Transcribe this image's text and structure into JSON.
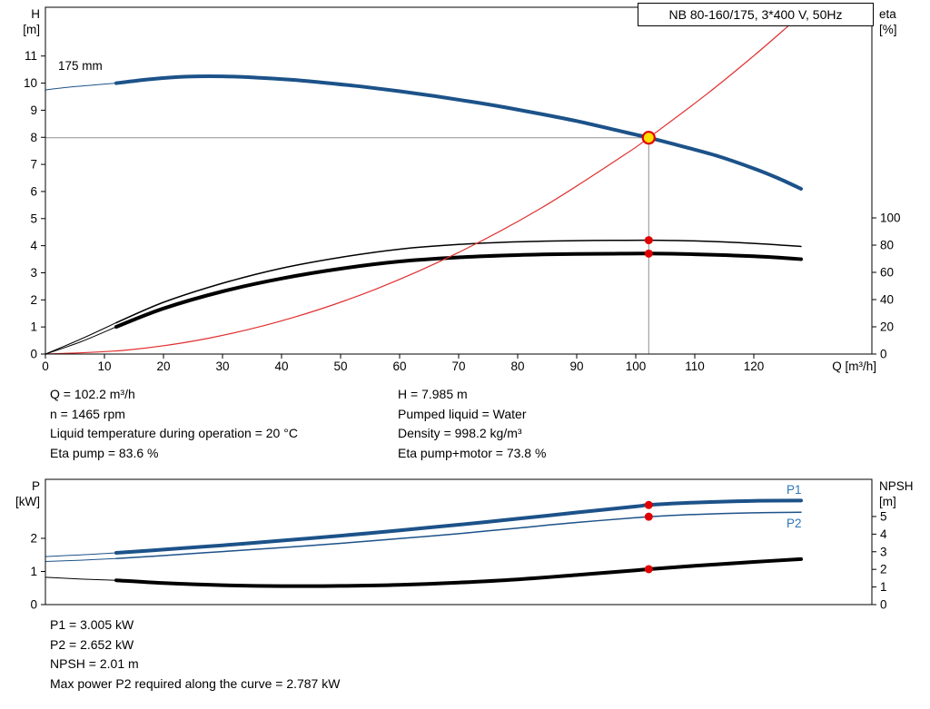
{
  "colors": {
    "blue": "#1c5289",
    "red": "#e03030",
    "black": "#000000",
    "label_blue": "#2e75b6",
    "duty_fill": "#ffdf00",
    "duty_ring": "#e00000",
    "dot_red": "#e00000",
    "guide_gray": "#909090"
  },
  "info_top": {
    "col1": [
      "Q = 102.2 m³/h",
      "n = 1465 rpm",
      "Liquid temperature during operation = 20 °C",
      "Eta pump = 83.6 %"
    ],
    "col2": [
      "H = 7.985 m",
      "Pumped liquid = Water",
      "Density = 998.2 kg/m³",
      "Eta pump+motor = 73.8 %"
    ]
  },
  "info_bottom": [
    "P1 = 3.005 kW",
    "P2 = 2.652 kW",
    "NPSH = 2.01 m",
    "Max power P2 required along the curve = 2.787 kW"
  ],
  "chart_data": [
    {
      "type": "line",
      "title": "NB 80-160/175, 3*400 V, 50Hz",
      "xlabel": "Q [m³/h]",
      "x_range": [
        0,
        140
      ],
      "x_ticks": [
        0,
        10,
        20,
        30,
        40,
        50,
        60,
        70,
        80,
        90,
        100,
        110,
        120
      ],
      "left_axis": {
        "label_lines": [
          "H",
          "[m]"
        ],
        "range": [
          0,
          12.8
        ],
        "ticks": [
          0,
          1,
          2,
          3,
          4,
          5,
          6,
          7,
          8,
          9,
          10,
          11
        ]
      },
      "right_axis": {
        "label_lines": [
          "eta",
          "[%]"
        ],
        "range": [
          0,
          254.7
        ],
        "ticks": [
          0,
          20,
          40,
          60,
          80,
          100
        ]
      },
      "impeller_label": "175 mm",
      "duty_point": {
        "q_m3h": 102.2,
        "h_m": 7.985,
        "eta_pump_pct": 83.6,
        "eta_pump_motor_pct": 73.8
      },
      "guides": {
        "crosshair": {
          "q": 102.2,
          "value": 7.985
        }
      },
      "series": [
        {
          "name": "head-curve-thin",
          "axis": "left",
          "color": "blue",
          "width": 1,
          "points": [
            [
              0,
              9.75
            ],
            [
              4,
              9.85
            ],
            [
              8,
              9.93
            ],
            [
              12,
              10.0
            ]
          ]
        },
        {
          "name": "eta-pump-thin",
          "axis": "right",
          "color": "black",
          "width": 1,
          "points": [
            [
              0,
              0
            ],
            [
              6,
              11
            ],
            [
              12,
              23
            ]
          ]
        },
        {
          "name": "eta-pump-motor-thin",
          "axis": "right",
          "color": "black",
          "width": 1,
          "points": [
            [
              0,
              0
            ],
            [
              6,
              9
            ],
            [
              12,
              20
            ]
          ]
        },
        {
          "name": "eta-pump-curve",
          "axis": "right",
          "color": "black",
          "width": 1.5,
          "points": [
            [
              12,
              23
            ],
            [
              20,
              38
            ],
            [
              30,
              52
            ],
            [
              40,
              63
            ],
            [
              50,
              71
            ],
            [
              60,
              77
            ],
            [
              70,
              80.5
            ],
            [
              80,
              82.4
            ],
            [
              90,
              83.3
            ],
            [
              96,
              83.5
            ],
            [
              102.2,
              83.6
            ],
            [
              110,
              83.1
            ],
            [
              120,
              81.3
            ],
            [
              128,
              79
            ]
          ]
        },
        {
          "name": "eta-pump-motor-curve",
          "axis": "right",
          "color": "black",
          "width": 4,
          "points": [
            [
              12,
              20
            ],
            [
              20,
              33.5
            ],
            [
              30,
              46
            ],
            [
              40,
              55.5
            ],
            [
              50,
              62.7
            ],
            [
              60,
              68
            ],
            [
              70,
              71
            ],
            [
              80,
              72.7
            ],
            [
              90,
              73.5
            ],
            [
              96,
              73.7
            ],
            [
              102.2,
              73.8
            ],
            [
              110,
              73.3
            ],
            [
              120,
              71.8
            ],
            [
              128,
              69.7
            ]
          ]
        },
        {
          "name": "system-curve",
          "axis": "left",
          "color": "red",
          "width": 1.2,
          "points": [
            [
              0,
              0
            ],
            [
              14,
              0.15
            ],
            [
              28,
              0.6
            ],
            [
              42,
              1.35
            ],
            [
              56,
              2.4
            ],
            [
              70,
              3.75
            ],
            [
              84,
              5.39
            ],
            [
              98,
              7.34
            ],
            [
              102.2,
              7.985
            ],
            [
              112,
              9.59
            ],
            [
              120,
              11.01
            ],
            [
              126,
              12.14
            ]
          ]
        },
        {
          "name": "head-curve",
          "axis": "left",
          "color": "blue",
          "width": 4,
          "points": [
            [
              12,
              10.0
            ],
            [
              18,
              10.15
            ],
            [
              24,
              10.24
            ],
            [
              30,
              10.25
            ],
            [
              36,
              10.2
            ],
            [
              42,
              10.12
            ],
            [
              48,
              10.0
            ],
            [
              54,
              9.86
            ],
            [
              60,
              9.7
            ],
            [
              66,
              9.52
            ],
            [
              72,
              9.32
            ],
            [
              78,
              9.1
            ],
            [
              84,
              8.86
            ],
            [
              90,
              8.6
            ],
            [
              96,
              8.3
            ],
            [
              102.2,
              7.985
            ],
            [
              108,
              7.66
            ],
            [
              114,
              7.3
            ],
            [
              120,
              6.85
            ],
            [
              124,
              6.5
            ],
            [
              128,
              6.1
            ]
          ]
        }
      ],
      "markers": [
        {
          "name": "duty-point",
          "q": 102.2,
          "axis": "left",
          "value": 7.985,
          "style": "duty"
        },
        {
          "name": "eta-pump-point",
          "q": 102.2,
          "axis": "right",
          "value": 83.6,
          "style": "dot"
        },
        {
          "name": "eta-pump-motor-point",
          "q": 102.2,
          "axis": "right",
          "value": 73.8,
          "style": "dot"
        }
      ]
    },
    {
      "type": "line",
      "title": "",
      "xlabel": "",
      "x_range": [
        0,
        140
      ],
      "x_ticks": [],
      "left_axis": {
        "label_lines": [
          "P",
          "[kW]"
        ],
        "range": [
          0,
          3.78
        ],
        "ticks": [
          0,
          1,
          2
        ]
      },
      "right_axis": {
        "label_lines": [
          "NPSH",
          "[m]"
        ],
        "range": [
          0,
          7.11
        ],
        "ticks": [
          0,
          1,
          2,
          3,
          4,
          5
        ]
      },
      "duty_point": {
        "q_m3h": 102.2,
        "p1_kw": 3.005,
        "p2_kw": 2.652,
        "npsh_m": 2.01,
        "max_p2_kw": 2.787
      },
      "curve_labels": [
        {
          "text": "P1"
        },
        {
          "text": "P2"
        }
      ],
      "series": [
        {
          "name": "p1-curve-thin",
          "axis": "left",
          "color": "blue",
          "width": 1,
          "points": [
            [
              0,
              1.45
            ],
            [
              6,
              1.5
            ],
            [
              12,
              1.56
            ]
          ]
        },
        {
          "name": "p2-curve-thin",
          "axis": "left",
          "color": "blue",
          "width": 1,
          "points": [
            [
              0,
              1.3
            ],
            [
              6,
              1.34
            ],
            [
              12,
              1.39
            ]
          ]
        },
        {
          "name": "npsh-curve-thin",
          "axis": "right",
          "color": "black",
          "width": 1,
          "points": [
            [
              0,
              1.55
            ],
            [
              6,
              1.45
            ],
            [
              12,
              1.38
            ]
          ]
        },
        {
          "name": "p1-curve",
          "axis": "left",
          "color": "blue",
          "width": 4,
          "points": [
            [
              12,
              1.56
            ],
            [
              20,
              1.66
            ],
            [
              30,
              1.79
            ],
            [
              40,
              1.93
            ],
            [
              50,
              2.08
            ],
            [
              60,
              2.24
            ],
            [
              70,
              2.41
            ],
            [
              80,
              2.59
            ],
            [
              90,
              2.78
            ],
            [
              100,
              2.96
            ],
            [
              102.2,
              3.005
            ],
            [
              110,
              3.08
            ],
            [
              120,
              3.13
            ],
            [
              128,
              3.14
            ]
          ]
        },
        {
          "name": "p2-curve",
          "axis": "left",
          "color": "blue",
          "width": 1.5,
          "points": [
            [
              12,
              1.39
            ],
            [
              20,
              1.48
            ],
            [
              30,
              1.6
            ],
            [
              40,
              1.72
            ],
            [
              50,
              1.85
            ],
            [
              60,
              1.99
            ],
            [
              70,
              2.14
            ],
            [
              80,
              2.31
            ],
            [
              90,
              2.48
            ],
            [
              100,
              2.62
            ],
            [
              102.2,
              2.652
            ],
            [
              110,
              2.72
            ],
            [
              120,
              2.77
            ],
            [
              128,
              2.787
            ]
          ]
        },
        {
          "name": "npsh-curve",
          "axis": "right",
          "color": "black",
          "width": 4,
          "points": [
            [
              12,
              1.38
            ],
            [
              20,
              1.22
            ],
            [
              30,
              1.1
            ],
            [
              40,
              1.05
            ],
            [
              50,
              1.06
            ],
            [
              60,
              1.12
            ],
            [
              70,
              1.25
            ],
            [
              80,
              1.43
            ],
            [
              90,
              1.68
            ],
            [
              100,
              1.95
            ],
            [
              102.2,
              2.01
            ],
            [
              110,
              2.2
            ],
            [
              120,
              2.42
            ],
            [
              128,
              2.58
            ]
          ]
        }
      ],
      "markers": [
        {
          "name": "p1-point",
          "q": 102.2,
          "axis": "left",
          "value": 3.005,
          "style": "dot"
        },
        {
          "name": "p2-point",
          "q": 102.2,
          "axis": "left",
          "value": 2.652,
          "style": "dot"
        },
        {
          "name": "npsh-point",
          "q": 102.2,
          "axis": "right",
          "value": 2.01,
          "style": "dot"
        }
      ]
    }
  ]
}
